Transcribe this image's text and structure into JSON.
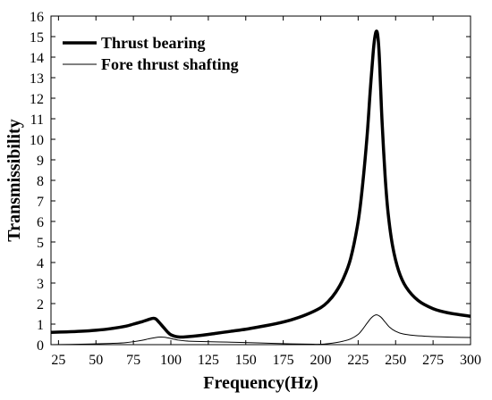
{
  "chart_data": {
    "type": "line",
    "title": "",
    "xlabel": "Frequency(Hz)",
    "ylabel": "Transmissibility",
    "xlim": [
      20,
      300
    ],
    "ylim": [
      0,
      16
    ],
    "xticks": [
      25,
      50,
      75,
      100,
      125,
      150,
      175,
      200,
      225,
      250,
      275,
      300
    ],
    "yticks": [
      0,
      1,
      2,
      3,
      4,
      5,
      6,
      7,
      8,
      9,
      10,
      11,
      12,
      13,
      14,
      15,
      16
    ],
    "grid": false,
    "legend_position": "top-left",
    "series": [
      {
        "name": "Thrust bearing",
        "color": "#000000",
        "style": "thick",
        "x": [
          20,
          30,
          40,
          50,
          60,
          70,
          75,
          80,
          85,
          88,
          90,
          92,
          95,
          98,
          100,
          103,
          106,
          110,
          120,
          130,
          140,
          150,
          160,
          170,
          180,
          190,
          200,
          205,
          210,
          215,
          220,
          225,
          228,
          231,
          233,
          235,
          236,
          237,
          238,
          239,
          240,
          241,
          243,
          245,
          248,
          252,
          257,
          265,
          275,
          285,
          300
        ],
        "y": [
          0.6,
          0.62,
          0.65,
          0.7,
          0.78,
          0.9,
          1.0,
          1.1,
          1.22,
          1.28,
          1.25,
          1.1,
          0.85,
          0.6,
          0.48,
          0.4,
          0.37,
          0.38,
          0.45,
          0.55,
          0.65,
          0.75,
          0.88,
          1.02,
          1.2,
          1.45,
          1.8,
          2.1,
          2.55,
          3.2,
          4.2,
          6.0,
          7.8,
          10.2,
          12.3,
          14.2,
          14.9,
          15.25,
          15.1,
          14.2,
          12.5,
          10.8,
          8.2,
          6.4,
          4.8,
          3.6,
          2.8,
          2.15,
          1.75,
          1.55,
          1.38
        ]
      },
      {
        "name": "Fore thrust shafting",
        "color": "#000000",
        "style": "thin",
        "x": [
          20,
          40,
          60,
          70,
          80,
          85,
          90,
          93,
          96,
          100,
          105,
          110,
          120,
          140,
          160,
          180,
          195,
          200,
          205,
          210,
          215,
          220,
          225,
          228,
          231,
          234,
          237,
          240,
          243,
          246,
          250,
          255,
          262,
          270,
          280,
          290,
          300
        ],
        "y": [
          0.0,
          0.02,
          0.06,
          0.1,
          0.2,
          0.28,
          0.35,
          0.37,
          0.36,
          0.3,
          0.22,
          0.18,
          0.15,
          0.12,
          0.08,
          0.04,
          0.02,
          0.02,
          0.05,
          0.1,
          0.17,
          0.28,
          0.5,
          0.75,
          1.05,
          1.32,
          1.45,
          1.35,
          1.1,
          0.85,
          0.65,
          0.52,
          0.45,
          0.41,
          0.38,
          0.36,
          0.35
        ]
      }
    ]
  }
}
